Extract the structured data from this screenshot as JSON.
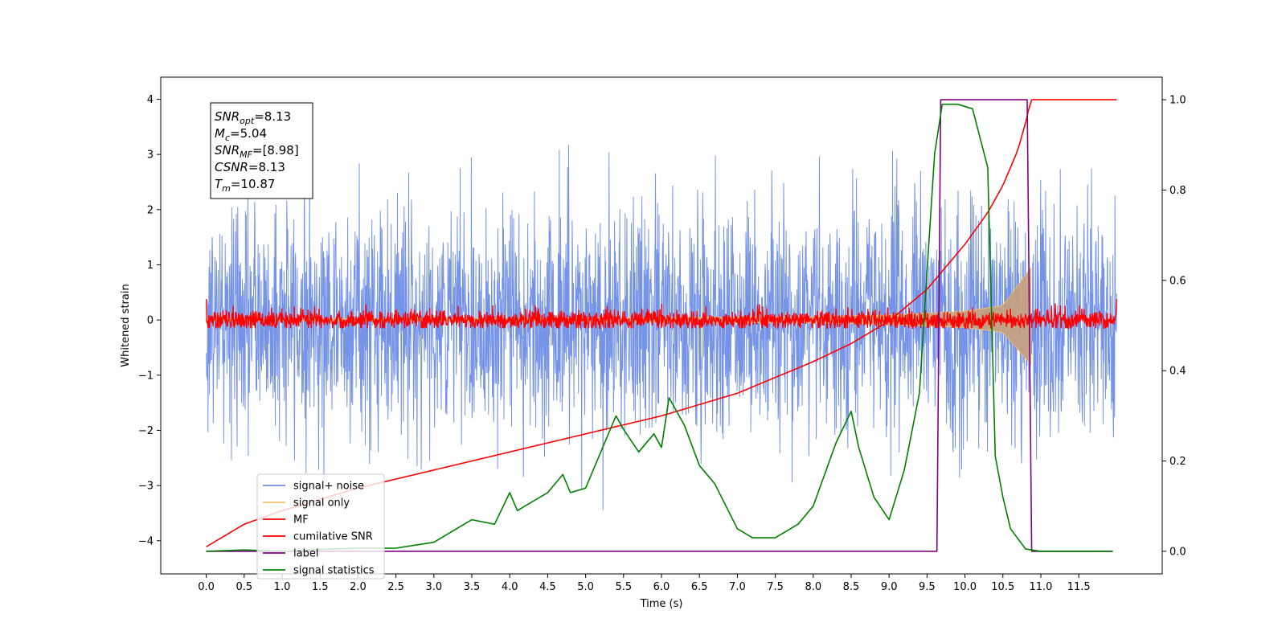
{
  "chart_data": {
    "type": "line",
    "xlabel": "Time (s)",
    "ylabel": "Whitened strain",
    "xlim": [
      -0.6,
      12.6
    ],
    "ylim": [
      -4.6,
      4.4
    ],
    "y2lim": [
      -0.05,
      1.05
    ],
    "xticks": [
      "0.0",
      "0.5",
      "1.0",
      "1.5",
      "2.0",
      "2.5",
      "3.0",
      "3.5",
      "4.0",
      "4.5",
      "5.0",
      "5.5",
      "6.0",
      "6.5",
      "7.0",
      "7.5",
      "8.0",
      "8.5",
      "9.0",
      "9.5",
      "10.0",
      "10.5",
      "11.0",
      "11.5"
    ],
    "yticks": [
      "4",
      "3",
      "2",
      "1",
      "0",
      "−1",
      "−2",
      "−3",
      "−4"
    ],
    "y2ticks": [
      "1.0",
      "0.8",
      "0.6",
      "0.4",
      "0.2",
      "0.0"
    ],
    "legend_placement": "lower-left",
    "legend": [
      "signal+ noise",
      "signal only",
      "MF",
      "cumilative SNR",
      "label",
      "signal statistics"
    ],
    "annotation": {
      "lines": [
        {
          "base": "SNR",
          "sub": "opt",
          "value": "=8.13"
        },
        {
          "base": "M",
          "sub": "c",
          "value": "=5.04"
        },
        {
          "base": "SNR",
          "sub": "MF",
          "value": "=[8.98]"
        },
        {
          "base": "CSNR",
          "sub": "",
          "value": "=8.13"
        },
        {
          "base": "T",
          "sub": "m",
          "value": "=10.87"
        }
      ]
    },
    "series": [
      {
        "name": "signal+ noise",
        "axis": "left",
        "color": "#6f8ee6",
        "kind": "noise",
        "x_range": [
          0.0,
          12.0
        ],
        "amplitude_sd": 1.0,
        "y_extent": [
          -4.1,
          4.0
        ]
      },
      {
        "name": "signal only",
        "axis": "left",
        "color": "#f5c26b",
        "kind": "chirp",
        "x_range": [
          0.0,
          10.87
        ],
        "envelope": {
          "x": [
            0.0,
            4.0,
            8.0,
            9.0,
            10.0,
            10.5,
            10.87
          ],
          "y": [
            0.02,
            0.03,
            0.06,
            0.09,
            0.16,
            0.26,
            0.95
          ]
        }
      },
      {
        "name": "MF",
        "axis": "left",
        "color": "#ff0000",
        "kind": "noise",
        "x_range": [
          0.0,
          12.0
        ],
        "amplitude_sd": 0.09,
        "y_extent": [
          -0.15,
          0.38
        ]
      },
      {
        "name": "cumilative SNR",
        "axis": "right",
        "color": "#ff0000",
        "x": [
          0.0,
          0.5,
          1.0,
          2.0,
          3.0,
          4.0,
          5.0,
          6.0,
          7.0,
          8.0,
          8.5,
          9.0,
          9.5,
          10.0,
          10.3,
          10.5,
          10.7,
          10.8,
          10.87,
          12.0
        ],
        "values": [
          0.01,
          0.06,
          0.09,
          0.14,
          0.18,
          0.22,
          0.26,
          0.3,
          0.35,
          0.42,
          0.46,
          0.51,
          0.58,
          0.68,
          0.75,
          0.81,
          0.89,
          0.95,
          1.0,
          1.0
        ]
      },
      {
        "name": "label",
        "axis": "right",
        "color": "#800080",
        "x": [
          0.0,
          9.63,
          9.68,
          10.82,
          10.88,
          11.95
        ],
        "values": [
          0.0,
          0.0,
          1.0,
          1.0,
          0.0,
          0.0
        ]
      },
      {
        "name": "signal statistics",
        "axis": "right",
        "color": "#008000",
        "x": [
          0.0,
          0.5,
          1.0,
          1.5,
          2.0,
          2.5,
          3.0,
          3.5,
          3.8,
          4.0,
          4.1,
          4.3,
          4.5,
          4.7,
          4.8,
          5.0,
          5.2,
          5.4,
          5.5,
          5.7,
          5.9,
          6.0,
          6.1,
          6.3,
          6.5,
          6.7,
          7.0,
          7.2,
          7.5,
          7.8,
          8.0,
          8.3,
          8.5,
          8.6,
          8.8,
          9.0,
          9.2,
          9.4,
          9.5,
          9.6,
          9.7,
          9.9,
          10.1,
          10.3,
          10.4,
          10.5,
          10.6,
          10.8,
          11.0,
          11.5,
          11.95
        ],
        "values": [
          0.0,
          0.003,
          0.0,
          0.004,
          0.007,
          0.007,
          0.02,
          0.07,
          0.06,
          0.13,
          0.09,
          0.11,
          0.13,
          0.17,
          0.13,
          0.14,
          0.22,
          0.3,
          0.27,
          0.22,
          0.26,
          0.23,
          0.34,
          0.28,
          0.19,
          0.15,
          0.05,
          0.03,
          0.03,
          0.06,
          0.1,
          0.24,
          0.31,
          0.23,
          0.12,
          0.07,
          0.18,
          0.35,
          0.62,
          0.88,
          0.99,
          0.99,
          0.98,
          0.85,
          0.21,
          0.12,
          0.05,
          0.005,
          0.0,
          0.0,
          0.0
        ]
      }
    ]
  }
}
